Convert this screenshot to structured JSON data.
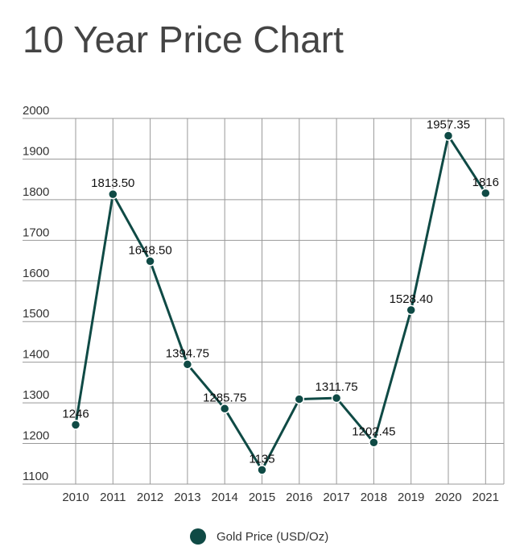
{
  "chart_data": {
    "type": "line",
    "title": "10 Year Price Chart",
    "categories": [
      "2010",
      "2011",
      "2012",
      "2013",
      "2014",
      "2015",
      "2016",
      "2017",
      "2018",
      "2019",
      "2020",
      "2021"
    ],
    "series": [
      {
        "name": "Gold Price (USD/Oz)",
        "values": [
          1246,
          1813.5,
          1648.5,
          1394.75,
          1285.75,
          1135,
          1309,
          1311.75,
          1202.45,
          1528.4,
          1957.35,
          1816
        ],
        "labels": [
          "1246",
          "1813.50",
          "1648.50",
          "1394.75",
          "1285.75",
          "1135",
          "",
          "1311.75",
          "1202.45",
          "1528.40",
          "1957.35",
          "1816"
        ]
      }
    ],
    "yticks": [
      1100,
      1200,
      1300,
      1400,
      1500,
      1600,
      1700,
      1800,
      1900,
      2000
    ],
    "ylim": [
      1100,
      2000
    ],
    "grid": true,
    "legend_position": "bottom-center",
    "color": "#0f4a45"
  }
}
